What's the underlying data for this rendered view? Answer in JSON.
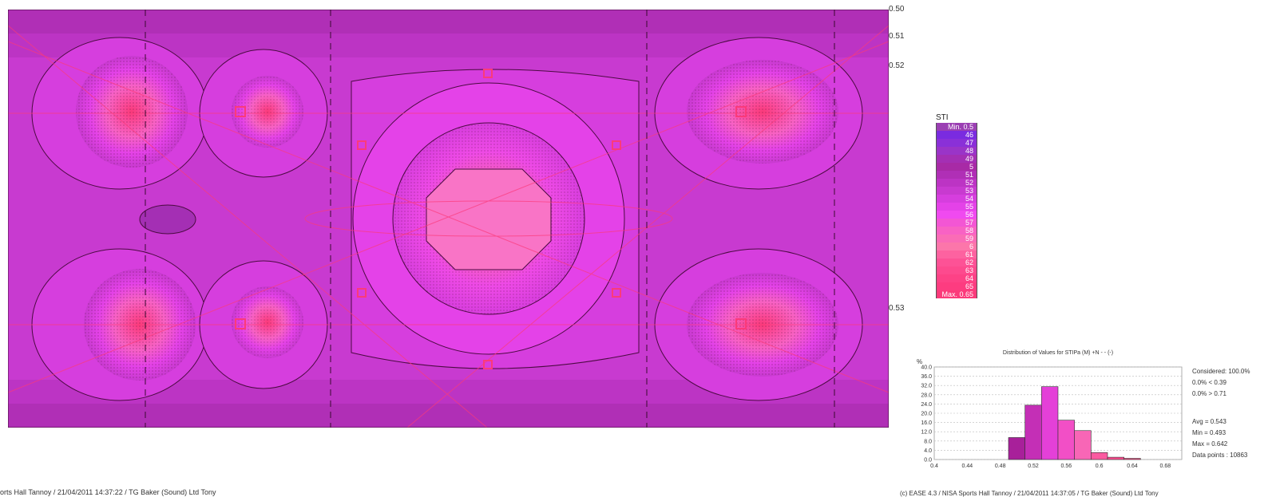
{
  "map": {
    "contour_labels": [
      "0.50",
      "0.51",
      "0.52",
      "0.53"
    ]
  },
  "legend": {
    "title": "STI",
    "entries": [
      {
        "label": "Min.  0.5",
        "color": "#9b3fb3"
      },
      {
        "label": "46",
        "color": "#7a2be0"
      },
      {
        "label": "47",
        "color": "#8a30d8"
      },
      {
        "label": "48",
        "color": "#9a34c8"
      },
      {
        "label": "49",
        "color": "#a42fb4"
      },
      {
        "label": "5",
        "color": "#a82aa6"
      },
      {
        "label": "51",
        "color": "#b02fb6"
      },
      {
        "label": "52",
        "color": "#bc34c4"
      },
      {
        "label": "53",
        "color": "#c83ad0"
      },
      {
        "label": "54",
        "color": "#d63ede"
      },
      {
        "label": "55",
        "color": "#e442e8"
      },
      {
        "label": "56",
        "color": "#f04af0"
      },
      {
        "label": "57",
        "color": "#f356d4"
      },
      {
        "label": "58",
        "color": "#f862c4"
      },
      {
        "label": "59",
        "color": "#fa6cb6"
      },
      {
        "label": "6",
        "color": "#fc76aa"
      },
      {
        "label": "61",
        "color": "#fd62a0"
      },
      {
        "label": "62",
        "color": "#fd5296"
      },
      {
        "label": "63",
        "color": "#fd4a8e"
      },
      {
        "label": "64",
        "color": "#fd4286"
      },
      {
        "label": "65",
        "color": "#fd3c80"
      },
      {
        "label": "Max.  0.65",
        "color": "#fb3a7a"
      }
    ]
  },
  "chart_data": {
    "type": "bar",
    "title": "Distribution of Values for STIPa (M) +N  - - (-)",
    "ylabel": "%",
    "ylim": [
      0,
      40
    ],
    "yticks": [
      "0.0",
      "4.0",
      "8.0",
      "12.0",
      "16.0",
      "20.0",
      "24.0",
      "28.0",
      "32.0",
      "36.0",
      "40.0"
    ],
    "xlim": [
      0.4,
      0.7
    ],
    "xticks": [
      "0.4",
      "0.44",
      "0.48",
      "0.52",
      "0.56",
      "0.6",
      "0.64",
      "0.68"
    ],
    "bins": [
      {
        "start": 0.49,
        "end": 0.51,
        "value": 9.5,
        "color": "#a8209a"
      },
      {
        "start": 0.51,
        "end": 0.53,
        "value": 23.5,
        "color": "#c42fb6"
      },
      {
        "start": 0.53,
        "end": 0.55,
        "value": 31.5,
        "color": "#e440d8"
      },
      {
        "start": 0.55,
        "end": 0.57,
        "value": 17.0,
        "color": "#f24fc6"
      },
      {
        "start": 0.57,
        "end": 0.59,
        "value": 12.5,
        "color": "#f866b6"
      },
      {
        "start": 0.59,
        "end": 0.61,
        "value": 3.0,
        "color": "#fb5aa0"
      },
      {
        "start": 0.61,
        "end": 0.63,
        "value": 1.0,
        "color": "#fc4a8e"
      },
      {
        "start": 0.63,
        "end": 0.65,
        "value": 0.5,
        "color": "#fd3c80"
      }
    ],
    "stats": {
      "considered": "Considered: 100.0%",
      "below": "0.0%  < 0.39",
      "above": "0.0%  > 0.71",
      "avg": "Avg = 0.543",
      "min": "Min = 0.493",
      "max": "Max = 0.642",
      "points": "Data points : 10863"
    }
  },
  "footer": {
    "left": "orts Hall Tannoy / 21/04/2011 14:37:22 / TG Baker (Sound) Ltd Tony",
    "right": "(c) EASE 4.3  / NISA Sports Hall Tannoy / 21/04/2011 14:37:05 / TG Baker (Sound) Ltd Tony"
  }
}
